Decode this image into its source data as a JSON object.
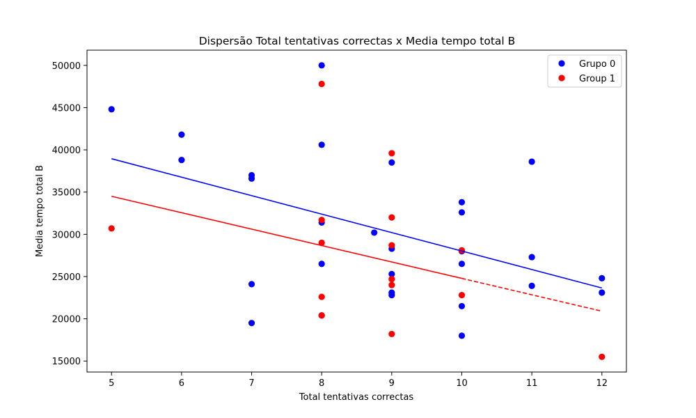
{
  "chart_data": {
    "type": "scatter",
    "title": "Dispersão Total tentativas correctas x Media tempo total B",
    "xlabel": "Total tentativas correctas",
    "ylabel": "Media tempo total B",
    "xlim": [
      4.65,
      12.35
    ],
    "ylim": [
      13700,
      51800
    ],
    "xticks": [
      5,
      6,
      7,
      8,
      9,
      10,
      11,
      12
    ],
    "yticks": [
      15000,
      20000,
      25000,
      30000,
      35000,
      40000,
      45000,
      50000
    ],
    "grid": false,
    "legend_position": "top-right",
    "series": [
      {
        "name": "Grupo 0",
        "color": "#0000ff",
        "points": [
          {
            "x": 5,
            "y": 44800
          },
          {
            "x": 6,
            "y": 41800
          },
          {
            "x": 6,
            "y": 38800
          },
          {
            "x": 7,
            "y": 37000
          },
          {
            "x": 7,
            "y": 36600
          },
          {
            "x": 7,
            "y": 24100
          },
          {
            "x": 7,
            "y": 19500
          },
          {
            "x": 8,
            "y": 50000
          },
          {
            "x": 8,
            "y": 40600
          },
          {
            "x": 8,
            "y": 31400
          },
          {
            "x": 8,
            "y": 26500
          },
          {
            "x": 8,
            "y": 20400
          },
          {
            "x": 8.75,
            "y": 30200
          },
          {
            "x": 9,
            "y": 38500
          },
          {
            "x": 9,
            "y": 28300
          },
          {
            "x": 9,
            "y": 25300
          },
          {
            "x": 9,
            "y": 23100
          },
          {
            "x": 9,
            "y": 22800
          },
          {
            "x": 10,
            "y": 33800
          },
          {
            "x": 10,
            "y": 32600
          },
          {
            "x": 10,
            "y": 28000
          },
          {
            "x": 10,
            "y": 26500
          },
          {
            "x": 10,
            "y": 21500
          },
          {
            "x": 10,
            "y": 18000
          },
          {
            "x": 11,
            "y": 38600
          },
          {
            "x": 11,
            "y": 27300
          },
          {
            "x": 11,
            "y": 23900
          },
          {
            "x": 12,
            "y": 24800
          },
          {
            "x": 12,
            "y": 23100
          }
        ],
        "fit": {
          "x_start": 5,
          "y_start": 38950,
          "x_end": 12,
          "y_end": 23650,
          "style": "solid"
        }
      },
      {
        "name": "Group 1",
        "color": "#ff0000",
        "points": [
          {
            "x": 5,
            "y": 30700
          },
          {
            "x": 8,
            "y": 47800
          },
          {
            "x": 8,
            "y": 31700
          },
          {
            "x": 8,
            "y": 29000
          },
          {
            "x": 8,
            "y": 22600
          },
          {
            "x": 8,
            "y": 20400
          },
          {
            "x": 9,
            "y": 39600
          },
          {
            "x": 9,
            "y": 32000
          },
          {
            "x": 9,
            "y": 28700
          },
          {
            "x": 9,
            "y": 24700
          },
          {
            "x": 9,
            "y": 24000
          },
          {
            "x": 9,
            "y": 18200
          },
          {
            "x": 10,
            "y": 28100
          },
          {
            "x": 10,
            "y": 22800
          },
          {
            "x": 12,
            "y": 15500
          }
        ],
        "fit": {
          "x_start": 5,
          "y_start": 34500,
          "x_end": 12,
          "y_end": 20900,
          "solid_until_x": 10,
          "style": "solid-then-dashed"
        }
      }
    ]
  }
}
